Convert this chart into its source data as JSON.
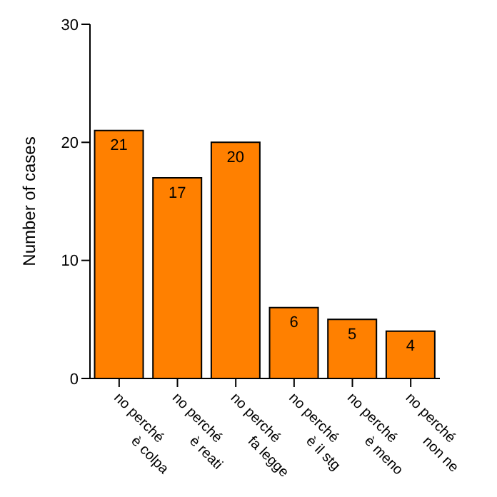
{
  "chart_data": {
    "type": "bar",
    "ylabel": "Number of cases",
    "categories": [
      "no perché\nè colpa",
      "no perché\nè reati",
      "no perché\nfa legge",
      "no perché\nè il stg",
      "no perché\nè meno",
      "no perché\nnon ne"
    ],
    "values": [
      21,
      17,
      20,
      6,
      5,
      4
    ],
    "color": "#ff8000",
    "ylim": [
      0,
      30
    ],
    "yticks": [
      0,
      10,
      20,
      30
    ],
    "grid": false,
    "data_labels": true
  }
}
